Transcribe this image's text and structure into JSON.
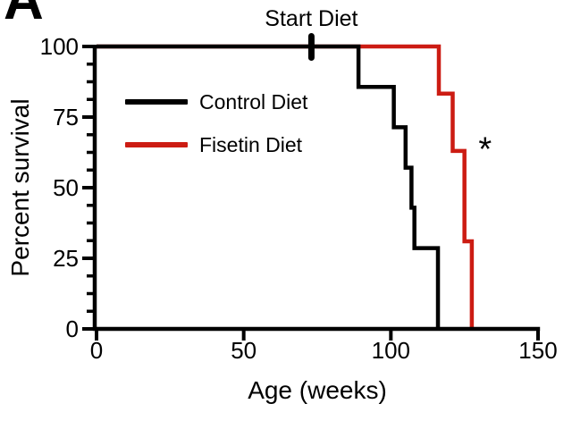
{
  "panel_label": "A",
  "chart_data": {
    "type": "line",
    "subtype": "kaplan-meier-step",
    "title": "",
    "xlabel": "Age (weeks)",
    "ylabel": "Percent survival",
    "xlim": [
      0,
      150
    ],
    "ylim": [
      0,
      100
    ],
    "x_ticks": [
      0,
      50,
      100,
      150
    ],
    "y_ticks": [
      0,
      25,
      50,
      75,
      100
    ],
    "y_minor_step": 6.25,
    "grid": false,
    "legend_position": "inside-upper-left",
    "annotations": {
      "start_diet": {
        "label": "Start Diet",
        "week": 73
      },
      "significance": {
        "label": "*",
        "week": 132,
        "percent": 65
      }
    },
    "series": [
      {
        "name": "Control Diet",
        "color": "#000000",
        "steps": [
          [
            0,
            100
          ],
          [
            89,
            85.7
          ],
          [
            101,
            71.4
          ],
          [
            105,
            57.1
          ],
          [
            107,
            42.9
          ],
          [
            108,
            28.6
          ],
          [
            116,
            0
          ]
        ]
      },
      {
        "name": "Fisetin Diet",
        "color": "#cc1c13",
        "steps": [
          [
            0,
            100
          ],
          [
            116.3,
            83.3
          ],
          [
            121,
            63
          ],
          [
            125,
            31
          ],
          [
            127.5,
            0
          ]
        ]
      }
    ]
  }
}
